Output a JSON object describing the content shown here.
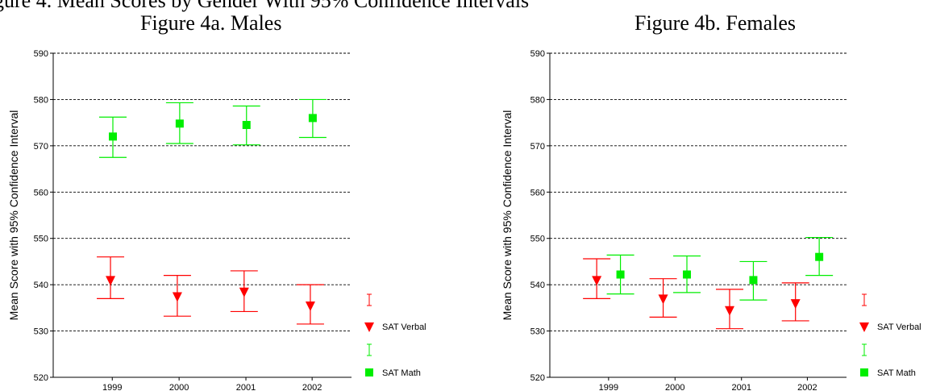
{
  "header": {
    "top_left_fragment": "gure 4.  Mean Scores by Gender With 95% Confidence Intervals",
    "figure_a_title": "Figure 4a.  Males",
    "figure_b_title": "Figure 4b.  Females"
  },
  "chart_data": [
    {
      "type": "scatter",
      "title": "Figure 4a.  Males",
      "ylabel": "Mean Score with 95% Confidence Interval",
      "xlabel": "",
      "categories": [
        "1999",
        "2000",
        "2001",
        "2002"
      ],
      "ylim": [
        520,
        590
      ],
      "yticks": [
        520,
        530,
        540,
        550,
        560,
        570,
        580,
        590
      ],
      "grid": true,
      "legend": "right",
      "series": [
        {
          "name": "SAT Verbal",
          "color": "#ff0000",
          "marker": "triangle-down",
          "values": [
            541,
            537.5,
            538.5,
            535.5
          ],
          "lower": [
            537,
            533.2,
            534.2,
            531.5
          ],
          "upper": [
            546,
            542,
            543,
            540
          ]
        },
        {
          "name": "SAT Math",
          "color": "#00ee00",
          "marker": "square",
          "values": [
            572,
            574.8,
            574.5,
            576
          ],
          "lower": [
            567.5,
            570.5,
            570.2,
            571.8
          ],
          "upper": [
            576.2,
            579.3,
            578.6,
            580
          ]
        }
      ]
    },
    {
      "type": "scatter",
      "title": "Figure 4b.  Females",
      "ylabel": "Mean Score with 95% Confidence Interval",
      "xlabel": "",
      "categories": [
        "1999",
        "2000",
        "2001",
        "2002"
      ],
      "ylim": [
        520,
        590
      ],
      "yticks": [
        520,
        530,
        540,
        550,
        560,
        570,
        580,
        590
      ],
      "grid": true,
      "legend": "right",
      "series": [
        {
          "name": "SAT Verbal",
          "color": "#ff0000",
          "marker": "triangle-down",
          "values": [
            541,
            537,
            534.5,
            536
          ],
          "lower": [
            537,
            533,
            530.5,
            532.2
          ],
          "upper": [
            545.6,
            541.3,
            539,
            540.4
          ]
        },
        {
          "name": "SAT Math",
          "color": "#00ee00",
          "marker": "square",
          "values": [
            542.2,
            542.2,
            541,
            546
          ],
          "lower": [
            538,
            538.3,
            536.7,
            542
          ],
          "upper": [
            546.4,
            546.2,
            545,
            550.2
          ]
        }
      ]
    }
  ]
}
